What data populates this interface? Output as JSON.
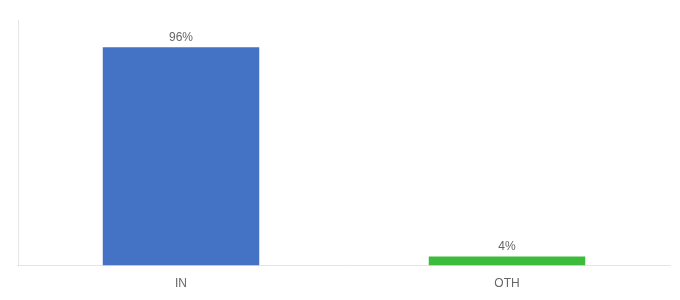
{
  "chart_data": {
    "type": "bar",
    "categories": [
      "IN",
      "OTH"
    ],
    "values": [
      96,
      4
    ],
    "colors": [
      "#4472c4",
      "#3dbb3d"
    ],
    "value_labels": [
      "96%",
      "4%"
    ],
    "data_labels": true,
    "ylim": [
      0,
      108
    ],
    "grid": false,
    "tick_labels": "x"
  }
}
